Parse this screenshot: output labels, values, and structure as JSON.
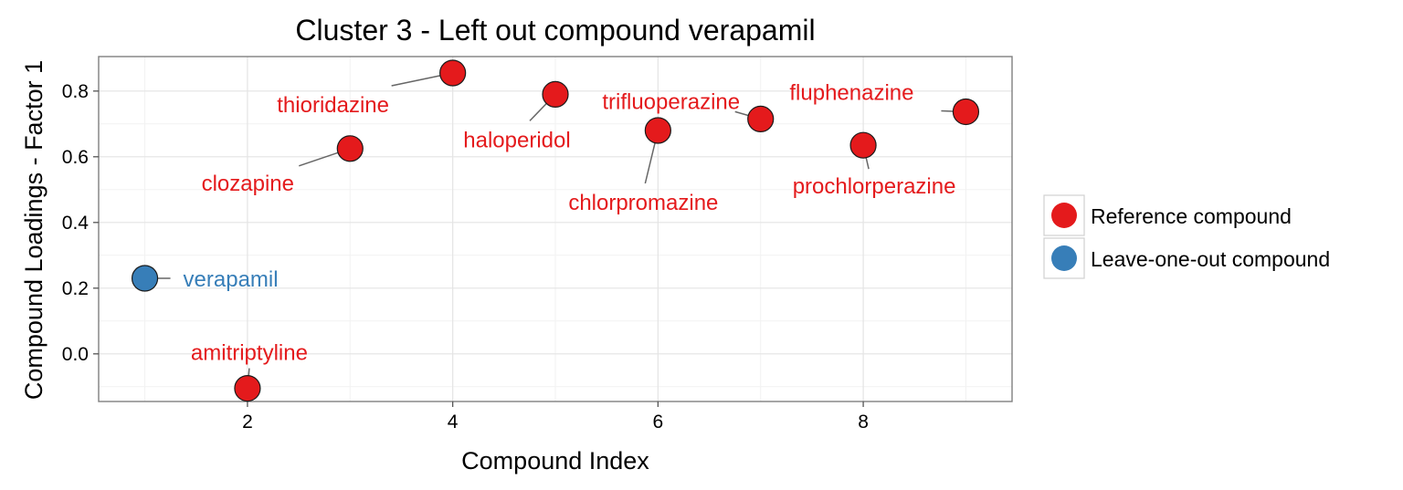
{
  "chart_data": {
    "type": "scatter",
    "title": "Cluster 3 - Left out compound verapamil",
    "xlabel": "Compound Index",
    "ylabel": "Compound Loadings - Factor 1",
    "xlim": [
      0.55,
      9.45
    ],
    "ylim": [
      -0.145,
      0.905
    ],
    "xticks": [
      2,
      4,
      6,
      8
    ],
    "xtick_labels": [
      "2",
      "4",
      "6",
      "8"
    ],
    "yticks": [
      0.0,
      0.2,
      0.4,
      0.6,
      0.8
    ],
    "ytick_labels": [
      "0.0",
      "0.2",
      "0.4",
      "0.6",
      "0.8"
    ],
    "grid": true,
    "legend_position": "right",
    "legend": [
      {
        "label": "Reference compound",
        "color": "#e41a1c"
      },
      {
        "label": "Leave-one-out compound",
        "color": "#377eb8"
      }
    ],
    "points": [
      {
        "x": 1,
        "y": 0.23,
        "label": "verapamil",
        "group": "Leave-one-out compound",
        "color": "#377eb8"
      },
      {
        "x": 2,
        "y": -0.105,
        "label": "amitriptyline",
        "group": "Reference compound",
        "color": "#e41a1c"
      },
      {
        "x": 3,
        "y": 0.625,
        "label": "clozapine",
        "group": "Reference compound",
        "color": "#e41a1c"
      },
      {
        "x": 4,
        "y": 0.855,
        "label": "thioridazine",
        "group": "Reference compound",
        "color": "#e41a1c"
      },
      {
        "x": 5,
        "y": 0.79,
        "label": "haloperidol",
        "group": "Reference compound",
        "color": "#e41a1c"
      },
      {
        "x": 6,
        "y": 0.68,
        "label": "chlorpromazine",
        "group": "Reference compound",
        "color": "#e41a1c"
      },
      {
        "x": 7,
        "y": 0.715,
        "label": "trifluoperazine",
        "group": "Reference compound",
        "color": "#e41a1c"
      },
      {
        "x": 8,
        "y": 0.635,
        "label": "prochlorperazine",
        "group": "Reference compound",
        "color": "#e41a1c"
      },
      {
        "x": 9,
        "y": 0.737,
        "label": "fluphenazine",
        "group": "Reference compound",
        "color": "#e41a1c"
      }
    ]
  }
}
